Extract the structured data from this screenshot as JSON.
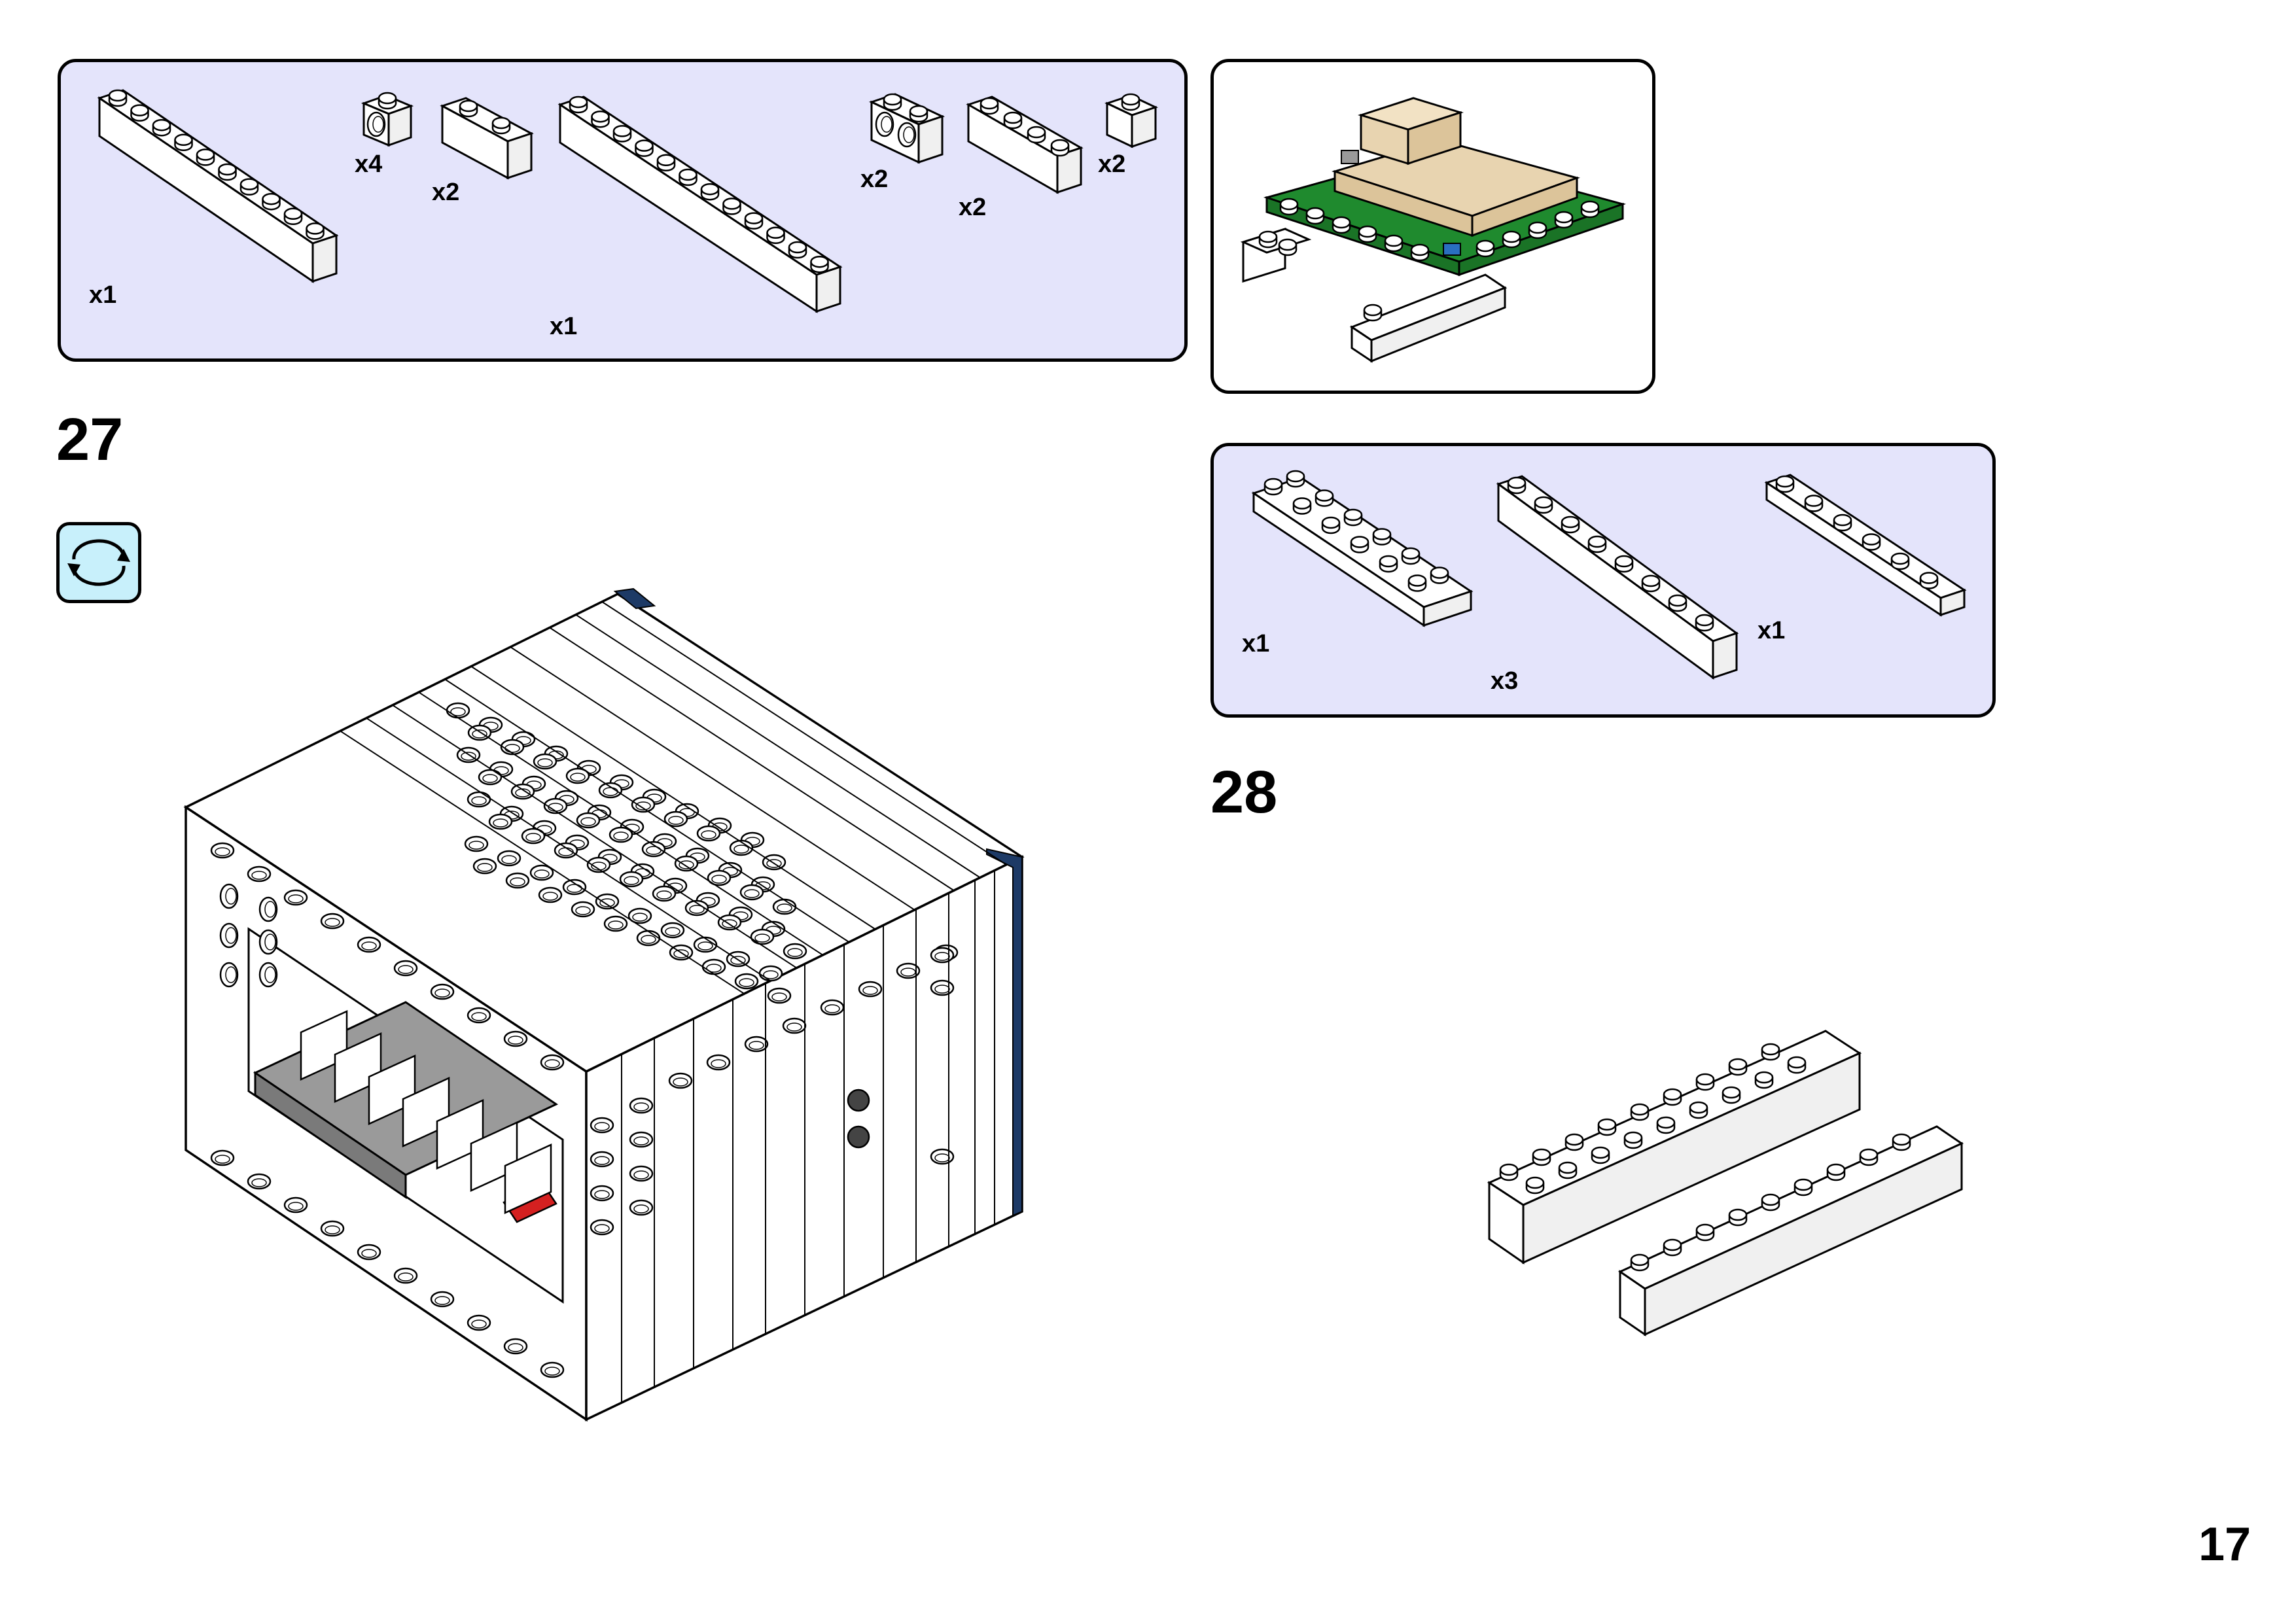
{
  "page_number": "17",
  "steps": [
    {
      "number": "27",
      "rotate_icon": "rotate-model-icon",
      "parts_list": [
        {
          "part": "brick-1x10-white",
          "qty": "x1"
        },
        {
          "part": "technic-brick-1x1-hole-white",
          "qty": "x4"
        },
        {
          "part": "brick-1x2-white",
          "qty": "x2"
        },
        {
          "part": "brick-1x12-white",
          "qty": "x1"
        },
        {
          "part": "technic-brick-1x2-holes-white",
          "qty": "x2"
        },
        {
          "part": "brick-1x4-white",
          "qty": "x2"
        },
        {
          "part": "brick-1x1-white",
          "qty": "x2"
        }
      ],
      "preview": "subassembly-green-base-tan-roof"
    },
    {
      "number": "28",
      "parts_list": [
        {
          "part": "plate-2x6-white",
          "qty": "x1"
        },
        {
          "part": "brick-1x8-white",
          "qty": "x3"
        },
        {
          "part": "plate-1x6-white",
          "qty": "x1"
        }
      ]
    }
  ],
  "colors": {
    "parts_panel_bg": "#e4e4fb",
    "rotate_icon_bg": "#c8f0fb",
    "brick_white": "#ffffff",
    "brick_gray": "#9a9a9a",
    "accent_red": "#d42020",
    "accent_navy": "#1d3a66",
    "base_green": "#1f8a2e",
    "roof_tan": "#e8d4b0"
  }
}
